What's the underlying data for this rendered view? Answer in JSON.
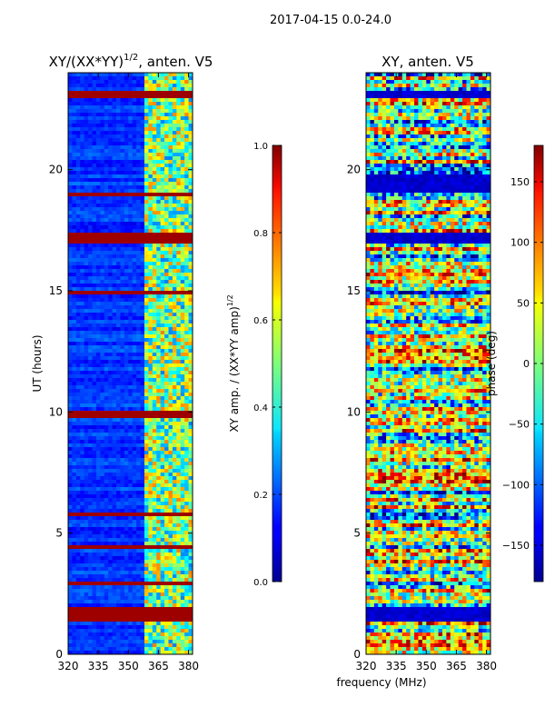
{
  "figure_title": "2017-04-15 0.0-24.0",
  "xlabel_shared": "frequency (MHz)",
  "chart_data": [
    {
      "type": "heatmap",
      "title_prefix": "XY/(XX*YY)",
      "title_exponent": "1/2",
      "title_suffix": ", anten. V5",
      "ylabel": "UT (hours)",
      "xlim": [
        320,
        382
      ],
      "ylim": [
        0,
        24
      ],
      "xticks": [
        320,
        335,
        350,
        365,
        380
      ],
      "yticks": [
        0,
        5,
        10,
        15,
        20
      ],
      "bright_channel_start_mhz": 359,
      "saturated_time_bands": [
        [
          1.4,
          1.9
        ],
        [
          2.8,
          3.0
        ],
        [
          4.3,
          4.5
        ],
        [
          5.7,
          5.9
        ],
        [
          9.8,
          10.0
        ],
        [
          14.8,
          15.0
        ],
        [
          16.9,
          17.4
        ],
        [
          18.9,
          19.1
        ],
        [
          22.9,
          23.3
        ]
      ],
      "colorbar": {
        "label_main": "XY amp. / (XX*YY amp)",
        "label_exponent": "1/2",
        "min": 0.0,
        "max": 1.0,
        "ticks": [
          "0.0",
          "0.2",
          "0.4",
          "0.6",
          "0.8",
          "1.0"
        ],
        "colormap": "jet"
      }
    },
    {
      "type": "heatmap",
      "title": "XY, anten. V5",
      "ylabel": "",
      "xlim": [
        320,
        382
      ],
      "ylim": [
        0,
        24
      ],
      "xticks": [
        320,
        335,
        350,
        365,
        380
      ],
      "yticks": [
        0,
        5,
        10,
        15,
        20
      ],
      "dark_time_bands": [
        [
          1.4,
          1.9
        ],
        [
          16.9,
          17.4
        ],
        [
          19.0,
          19.8
        ],
        [
          22.9,
          23.3
        ]
      ],
      "colorbar": {
        "label": "phase (deg)",
        "min": -180,
        "max": 180,
        "ticks": [
          "150",
          "100",
          "50",
          "0",
          "−50",
          "−100",
          "−150"
        ],
        "colormap": "jet"
      }
    }
  ]
}
